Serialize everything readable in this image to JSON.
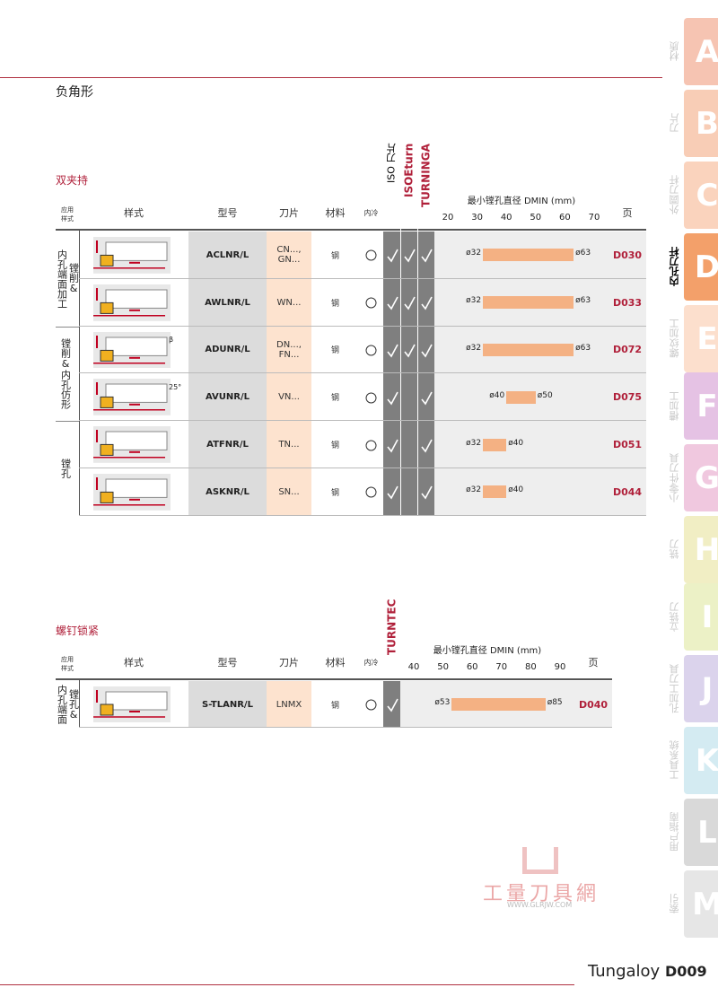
{
  "header": {
    "title": "负角形"
  },
  "tabs": [
    {
      "letter": "A",
      "label": "材质",
      "color": "#f6c4b2"
    },
    {
      "letter": "B",
      "label": "刀片",
      "color": "#f8cdb6"
    },
    {
      "letter": "C",
      "label": "外圆刀杆",
      "color": "#fad3bd"
    },
    {
      "letter": "D",
      "label": "内孔刀杆",
      "color": "#f3a06a",
      "active": true
    },
    {
      "letter": "E",
      "label": "螺纹加工",
      "color": "#fcdfcd"
    },
    {
      "letter": "F",
      "label": "槽加工",
      "color": "#e5c2e4"
    },
    {
      "letter": "G",
      "label": "小零件刀具",
      "color": "#f0c8df"
    },
    {
      "letter": "H",
      "label": "铣刀",
      "color": "#f1eec4"
    },
    {
      "letter": "I",
      "label": "立铣刀",
      "color": "#ecf1c6"
    },
    {
      "letter": "J",
      "label": "孔加工刀具",
      "color": "#dbd3ec"
    },
    {
      "letter": "K",
      "label": "工具系统",
      "color": "#d4ebf2"
    },
    {
      "letter": "L",
      "label": "用户指南",
      "color": "#d9d9d9"
    },
    {
      "letter": "M",
      "label": "索引",
      "color": "#e6e6e6"
    }
  ],
  "tables": [
    {
      "section": "双夹持",
      "head": {
        "application": [
          "应用",
          "样式"
        ],
        "style": "样式",
        "model": "型号",
        "insert": "刀片",
        "material": "材料",
        "coolant": "内冷",
        "brands": [
          "ISO 刀片",
          "ISOEturn",
          "TURNINGA"
        ],
        "chart_title": "最小镗孔直径 DMIN (mm)",
        "ticks": [
          20,
          30,
          40,
          50,
          60,
          70
        ],
        "page": "页"
      },
      "groups": [
        {
          "label": "内孔端面加工",
          "sub": "镗削&",
          "rows": [
            {
              "model": "ACLNR/L",
              "insert": [
                "CN...,",
                "GN..."
              ],
              "material": "钢",
              "brands": [
                true,
                true,
                true
              ],
              "dmin": [
                32,
                63
              ],
              "dmin_labels": [
                "ø32",
                "ø63"
              ],
              "page": "D030"
            },
            {
              "model": "AWLNR/L",
              "insert": [
                "WN..."
              ],
              "material": "钢",
              "brands": [
                true,
                true,
                true
              ],
              "dmin": [
                32,
                63
              ],
              "dmin_labels": [
                "ø32",
                "ø63"
              ],
              "page": "D033"
            }
          ]
        },
        {
          "label": "镗削&内孔仿形",
          "rows": [
            {
              "model": "ADUNR/L",
              "insert": [
                "DN...,",
                "FN..."
              ],
              "material": "钢",
              "brands": [
                true,
                true,
                true
              ],
              "dmin": [
                32,
                63
              ],
              "dmin_labels": [
                "ø32",
                "ø63"
              ],
              "page": "D072",
              "note": "β"
            },
            {
              "model": "AVUNR/L",
              "insert": [
                "VN..."
              ],
              "material": "钢",
              "brands": [
                true,
                false,
                true
              ],
              "dmin": [
                40,
                50
              ],
              "dmin_labels": [
                "ø40",
                "ø50"
              ],
              "page": "D075",
              "note": "25°"
            }
          ]
        },
        {
          "label": "镗孔",
          "rows": [
            {
              "model": "ATFNR/L",
              "insert": [
                "TN..."
              ],
              "material": "钢",
              "brands": [
                true,
                false,
                true
              ],
              "dmin": [
                32,
                40
              ],
              "dmin_labels": [
                "ø32",
                "ø40"
              ],
              "page": "D051"
            },
            {
              "model": "ASKNR/L",
              "insert": [
                "SN..."
              ],
              "material": "钢",
              "brands": [
                true,
                false,
                true
              ],
              "dmin": [
                32,
                40
              ],
              "dmin_labels": [
                "ø32",
                "ø40"
              ],
              "page": "D044"
            }
          ]
        }
      ]
    },
    {
      "section": "螺钉锁紧",
      "head": {
        "application": [
          "应用",
          "样式"
        ],
        "style": "样式",
        "model": "型号",
        "insert": "刀片",
        "material": "材料",
        "coolant": "内冷",
        "brands": [
          "TURNTEC"
        ],
        "chart_title": "最小镗孔直径 DMIN (mm)",
        "ticks": [
          40,
          50,
          60,
          70,
          80,
          90
        ],
        "page": "页"
      },
      "groups": [
        {
          "label": "内孔端面",
          "sub": "镗孔&",
          "rows": [
            {
              "model": "S-TLANR/L",
              "insert": [
                "LNMX"
              ],
              "material": "钢",
              "brands": [
                true
              ],
              "dmin": [
                53,
                85
              ],
              "dmin_labels": [
                "ø53",
                "ø85"
              ],
              "page": "D040"
            }
          ]
        }
      ]
    }
  ],
  "watermark": {
    "name": "工量刀具網",
    "url": "WWW.GLRJW.COM"
  },
  "footer": {
    "brand": "Tungaloy",
    "page": "D009"
  }
}
